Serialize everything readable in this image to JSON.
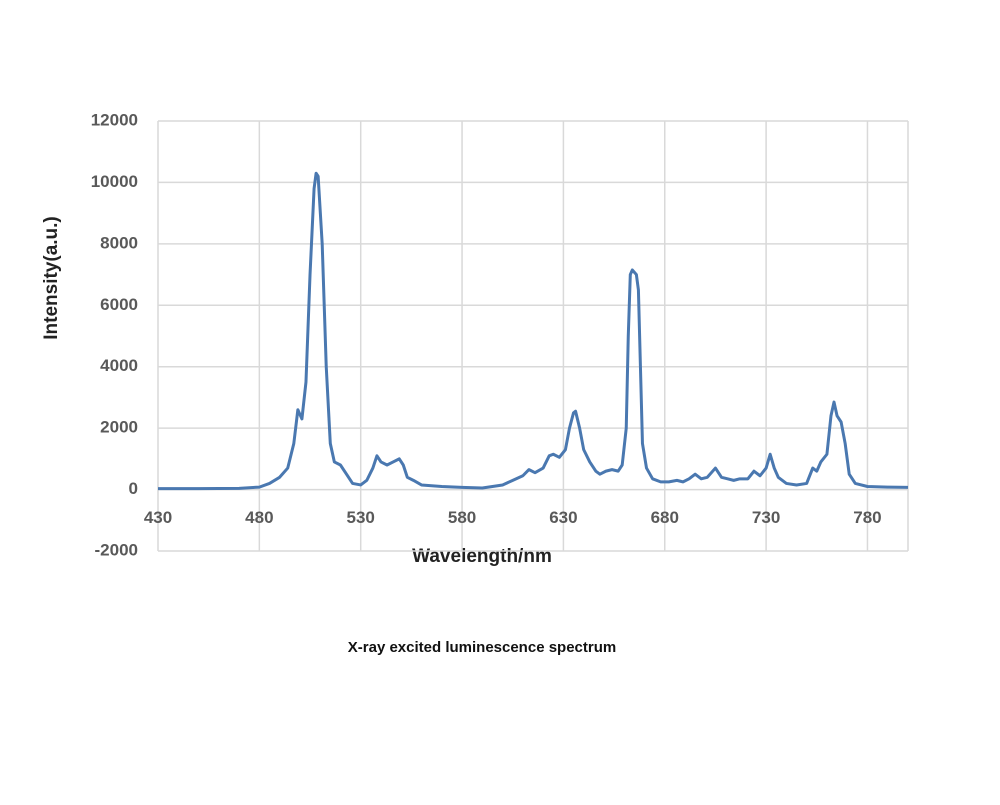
{
  "chart_data": {
    "type": "line",
    "x_label": "Wavelength/nm",
    "y_label": "Intensity(a.u.)",
    "caption": "X-ray excited luminescence spectrum",
    "xlim": [
      430,
      800
    ],
    "xticks": [
      430,
      480,
      530,
      580,
      630,
      680,
      730,
      780
    ],
    "ylim": [
      -2000,
      12000
    ],
    "yticks": [
      -2000,
      0,
      2000,
      4000,
      6000,
      8000,
      10000,
      12000
    ],
    "grid": true,
    "x": [
      430,
      450,
      470,
      480,
      485,
      490,
      494,
      497,
      499,
      501,
      503,
      505,
      507,
      508,
      509,
      511,
      513,
      515,
      517,
      520,
      523,
      526,
      530,
      533,
      536,
      538,
      540,
      543,
      546,
      549,
      551,
      553,
      556,
      560,
      570,
      580,
      590,
      600,
      605,
      610,
      613,
      616,
      620,
      623,
      625,
      628,
      631,
      633,
      635,
      636,
      638,
      640,
      643,
      646,
      648,
      651,
      654,
      657,
      659,
      661,
      662,
      663,
      664,
      666,
      667,
      668,
      669,
      671,
      674,
      678,
      682,
      686,
      689,
      692,
      695,
      698,
      701,
      705,
      708,
      711,
      714,
      717,
      721,
      724,
      727,
      730,
      732,
      734,
      736,
      740,
      745,
      750,
      753,
      755,
      757,
      760,
      762,
      763.5,
      765,
      767,
      769,
      771,
      774,
      780,
      790,
      800
    ],
    "series": [
      {
        "color": "#4a78b0",
        "values": [
          30,
          30,
          40,
          80,
          200,
          400,
          700,
          1500,
          2600,
          2300,
          3500,
          7000,
          9800,
          10300,
          10200,
          8000,
          4000,
          1500,
          900,
          800,
          500,
          200,
          150,
          300,
          700,
          1100,
          900,
          800,
          900,
          1000,
          800,
          400,
          300,
          150,
          100,
          70,
          50,
          150,
          300,
          450,
          650,
          550,
          700,
          1100,
          1150,
          1050,
          1300,
          2000,
          2500,
          2550,
          2000,
          1300,
          900,
          600,
          500,
          600,
          650,
          600,
          800,
          2000,
          5000,
          7000,
          7150,
          7000,
          6500,
          4000,
          1500,
          700,
          350,
          250,
          250,
          300,
          250,
          350,
          500,
          350,
          400,
          700,
          400,
          350,
          300,
          350,
          350,
          600,
          450,
          700,
          1150,
          700,
          400,
          200,
          150,
          200,
          700,
          600,
          900,
          1150,
          2400,
          2850,
          2400,
          2200,
          1500,
          500,
          200,
          100,
          80,
          70
        ]
      }
    ]
  }
}
